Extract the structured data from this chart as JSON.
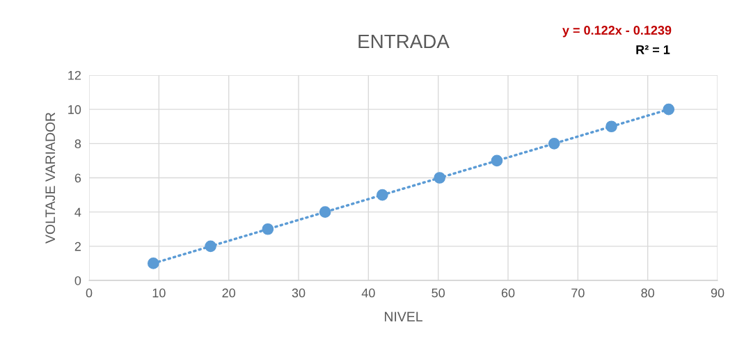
{
  "chart_data": {
    "type": "scatter",
    "title": "ENTRADA",
    "xlabel": "NIVEL",
    "ylabel": "VOLTAJE VARIADOR",
    "x": [
      9.2,
      17.4,
      25.6,
      33.8,
      42.0,
      50.2,
      58.4,
      66.6,
      74.8,
      83.0
    ],
    "series": [
      {
        "color": "#5b9bd5",
        "marker": "circle",
        "values": [
          1,
          2,
          3,
          4,
          5,
          6,
          7,
          8,
          9,
          10
        ]
      },
      {
        "type": "line",
        "color": "#5b9bd5",
        "line_style": "dotted",
        "x": [
          9.2,
          83.0
        ],
        "values": [
          1,
          10
        ]
      }
    ],
    "xlim": [
      0,
      90
    ],
    "xticks": [
      0,
      10,
      20,
      30,
      40,
      50,
      60,
      70,
      80,
      90
    ],
    "ylim": [
      0,
      12
    ],
    "yticks": [
      0,
      2,
      4,
      6,
      8,
      10,
      12
    ],
    "grid": true,
    "legend": false,
    "annotations": [
      "y = 0.122x - 0.1239",
      "R² = 1"
    ]
  }
}
